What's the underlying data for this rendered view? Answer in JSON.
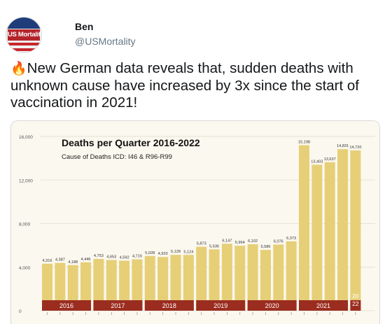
{
  "tweet": {
    "display_name": "Ben",
    "handle": "@USMortality",
    "avatar_text": "US Mortality",
    "emoji": "🔥",
    "text": "New German data reveals that, sudden deaths with unknown cause have increased by 3x since the start of vaccination in 2021!"
  },
  "colors": {
    "bar": "#e6cf77",
    "year_band": "#9b2d20",
    "background": "#fbf8ef"
  },
  "chart_data": {
    "type": "bar",
    "title": "Deaths per Quarter 2016-2022",
    "subtitle": "Cause of Deaths ICD: I46 & R96-R99",
    "ylim": [
      0,
      16000
    ],
    "y_ticks": [
      "0",
      "4,000",
      "8,000",
      "12,000",
      "16,000"
    ],
    "values": [
      4316,
      4387,
      4188,
      4446,
      4753,
      4653,
      4592,
      4716,
      5028,
      4933,
      5128,
      5124,
      5873,
      5636,
      6147,
      5964,
      6102,
      5586,
      6076,
      6373,
      15198,
      13403,
      13637,
      14831,
      14720
    ],
    "labels": [
      "4,316",
      "4,387",
      "4,188",
      "4,446",
      "4,753",
      "4,653",
      "4,592",
      "4,716",
      "5,028",
      "4,933",
      "5,128",
      "5,124",
      "5,873",
      "5,636",
      "6,147",
      "5,964",
      "6,102",
      "5,586",
      "6,076",
      "6,373",
      "15,198",
      "13,403",
      "13,637",
      "14,831",
      "14,720"
    ],
    "years": [
      {
        "label": "2016",
        "quarters": 4
      },
      {
        "label": "2017",
        "quarters": 4
      },
      {
        "label": "2018",
        "quarters": 4
      },
      {
        "label": "2019",
        "quarters": 4
      },
      {
        "label": "2020",
        "quarters": 4
      },
      {
        "label": "2021",
        "quarters": 4
      },
      {
        "label": "2022",
        "quarters": 1,
        "lines": [
          "20",
          "22"
        ]
      }
    ],
    "grid": true
  }
}
